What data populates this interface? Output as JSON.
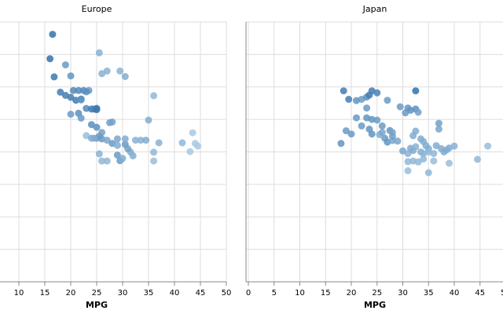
{
  "chart_data": [
    {
      "type": "scatter",
      "title": "Europe",
      "xlabel": "MPG",
      "ylabel": "",
      "xlim": [
        0,
        50
      ],
      "ylim": [
        0,
        800
      ],
      "xticks": [
        "10",
        "15",
        "20",
        "25",
        "30",
        "35",
        "40",
        "45",
        "50"
      ],
      "grid": true,
      "points": [
        [
          16.5,
          762,
          0.95
        ],
        [
          16.0,
          687,
          0.95
        ],
        [
          16.8,
          631,
          0.9
        ],
        [
          19.0,
          668,
          0.6
        ],
        [
          25.5,
          705,
          0.4
        ],
        [
          18.0,
          584,
          0.85
        ],
        [
          19.0,
          574,
          0.85
        ],
        [
          20.0,
          568,
          0.85
        ],
        [
          21.0,
          559,
          0.85
        ],
        [
          22.0,
          563,
          0.8
        ],
        [
          21.5,
          589,
          0.75
        ],
        [
          20.5,
          589,
          0.75
        ],
        [
          22.5,
          589,
          0.75
        ],
        [
          23.5,
          589,
          0.6
        ],
        [
          20.0,
          634,
          0.65
        ],
        [
          26.0,
          641,
          0.4
        ],
        [
          27.0,
          649,
          0.4
        ],
        [
          29.5,
          649,
          0.4
        ],
        [
          30.5,
          632,
          0.45
        ],
        [
          23.0,
          534,
          0.75
        ],
        [
          24.0,
          532,
          0.85
        ],
        [
          25.0,
          534,
          0.95
        ],
        [
          20.0,
          516,
          0.6
        ],
        [
          21.5,
          519,
          0.7
        ],
        [
          22.0,
          504,
          0.6
        ],
        [
          24.0,
          484,
          0.7
        ],
        [
          25.0,
          476,
          0.7
        ],
        [
          28.0,
          492,
          0.55
        ],
        [
          26.0,
          460,
          0.55
        ],
        [
          25.5,
          448,
          0.6
        ],
        [
          23.0,
          450,
          0.3
        ],
        [
          24.0,
          442,
          0.45
        ],
        [
          25.0,
          442,
          0.6
        ],
        [
          26.0,
          440,
          0.6
        ],
        [
          27.0,
          436,
          0.5
        ],
        [
          29.0,
          440,
          0.5
        ],
        [
          28.0,
          426,
          0.6
        ],
        [
          30.5,
          423,
          0.6
        ],
        [
          30.5,
          440,
          0.45
        ],
        [
          32.5,
          436,
          0.4
        ],
        [
          33.5,
          436,
          0.4
        ],
        [
          35.0,
          498,
          0.45
        ],
        [
          36.0,
          573,
          0.35
        ],
        [
          34.5,
          436,
          0.45
        ],
        [
          37.0,
          428,
          0.4
        ],
        [
          41.5,
          428,
          0.35
        ],
        [
          43.5,
          459,
          0.2
        ],
        [
          44.0,
          426,
          0.2
        ],
        [
          44.5,
          418,
          0.2
        ],
        [
          43.0,
          401,
          0.2
        ],
        [
          25.5,
          394,
          0.4
        ],
        [
          26.0,
          372,
          0.35
        ],
        [
          27.0,
          372,
          0.35
        ],
        [
          29.0,
          390,
          0.6
        ],
        [
          29.5,
          373,
          0.6
        ],
        [
          30.0,
          380,
          0.45
        ],
        [
          31.5,
          400,
          0.45
        ],
        [
          32.0,
          388,
          0.45
        ],
        [
          36.0,
          399,
          0.35
        ],
        [
          36.0,
          372,
          0.3
        ],
        [
          22.0,
          560,
          0.65
        ],
        [
          24.5,
          532,
          0.8
        ],
        [
          25.0,
          530,
          0.9
        ],
        [
          23.0,
          585,
          0.7
        ],
        [
          27.5,
          490,
          0.55
        ],
        [
          24.5,
          442,
          0.45
        ],
        [
          31.0,
          410,
          0.55
        ],
        [
          29.0,
          420,
          0.45
        ]
      ]
    },
    {
      "type": "scatter",
      "title": "Japan",
      "xlabel": "MPG",
      "ylabel": "",
      "xlim": [
        0,
        50
      ],
      "ylim": [
        0,
        800
      ],
      "xticks": [
        "0",
        "5",
        "10",
        "15",
        "20",
        "25",
        "30",
        "35",
        "40",
        "45",
        "50"
      ],
      "grid": true,
      "points": [
        [
          18.0,
          426,
          0.65
        ],
        [
          19.0,
          465,
          0.6
        ],
        [
          20.0,
          455,
          0.6
        ],
        [
          21.0,
          505,
          0.6
        ],
        [
          22.0,
          480,
          0.6
        ],
        [
          18.5,
          588,
          0.85
        ],
        [
          19.5,
          562,
          0.85
        ],
        [
          21.0,
          558,
          0.65
        ],
        [
          22.0,
          562,
          0.6
        ],
        [
          23.0,
          569,
          0.7
        ],
        [
          23.5,
          575,
          0.85
        ],
        [
          23.0,
          535,
          0.6
        ],
        [
          24.0,
          588,
          0.85
        ],
        [
          25.0,
          582,
          0.8
        ],
        [
          27.0,
          559,
          0.6
        ],
        [
          23.0,
          505,
          0.65
        ],
        [
          24.0,
          500,
          0.65
        ],
        [
          25.0,
          498,
          0.6
        ],
        [
          23.5,
          470,
          0.65
        ],
        [
          24.0,
          455,
          0.65
        ],
        [
          26.0,
          480,
          0.6
        ],
        [
          26.5,
          442,
          0.6
        ],
        [
          27.0,
          430,
          0.65
        ],
        [
          27.5,
          466,
          0.65
        ],
        [
          28.0,
          460,
          0.5
        ],
        [
          25.5,
          453,
          0.45
        ],
        [
          26.0,
          460,
          0.5
        ],
        [
          28.0,
          435,
          0.5
        ],
        [
          29.0,
          433,
          0.5
        ],
        [
          29.5,
          539,
          0.6
        ],
        [
          30.5,
          520,
          0.6
        ],
        [
          31.0,
          535,
          0.65
        ],
        [
          31.5,
          528,
          0.65
        ],
        [
          32.5,
          532,
          0.7
        ],
        [
          32.5,
          588,
          0.95
        ],
        [
          33.0,
          522,
          0.55
        ],
        [
          30.0,
          403,
          0.5
        ],
        [
          31.0,
          395,
          0.4
        ],
        [
          31.5,
          411,
          0.45
        ],
        [
          32.0,
          404,
          0.45
        ],
        [
          32.5,
          416,
          0.4
        ],
        [
          32.0,
          450,
          0.45
        ],
        [
          32.5,
          464,
          0.45
        ],
        [
          33.5,
          440,
          0.45
        ],
        [
          34.0,
          432,
          0.45
        ],
        [
          34.5,
          419,
          0.45
        ],
        [
          35.0,
          410,
          0.45
        ],
        [
          33.5,
          400,
          0.4
        ],
        [
          34.0,
          395,
          0.4
        ],
        [
          35.0,
          400,
          0.35
        ],
        [
          36.0,
          395,
          0.35
        ],
        [
          36.5,
          419,
          0.45
        ],
        [
          37.0,
          470,
          0.5
        ],
        [
          37.0,
          488,
          0.55
        ],
        [
          37.5,
          410,
          0.45
        ],
        [
          38.0,
          400,
          0.45
        ],
        [
          38.5,
          406,
          0.45
        ],
        [
          39.0,
          412,
          0.45
        ],
        [
          40.0,
          418,
          0.4
        ],
        [
          44.5,
          377,
          0.35
        ],
        [
          46.5,
          418,
          0.3
        ],
        [
          31.0,
          370,
          0.35
        ],
        [
          32.0,
          372,
          0.35
        ],
        [
          31.0,
          342,
          0.3
        ],
        [
          33.0,
          369,
          0.35
        ],
        [
          35.0,
          336,
          0.35
        ],
        [
          36.0,
          372,
          0.3
        ],
        [
          39.0,
          365,
          0.3
        ],
        [
          34.0,
          378,
          0.35
        ],
        [
          28.0,
          448,
          0.55
        ]
      ]
    }
  ]
}
